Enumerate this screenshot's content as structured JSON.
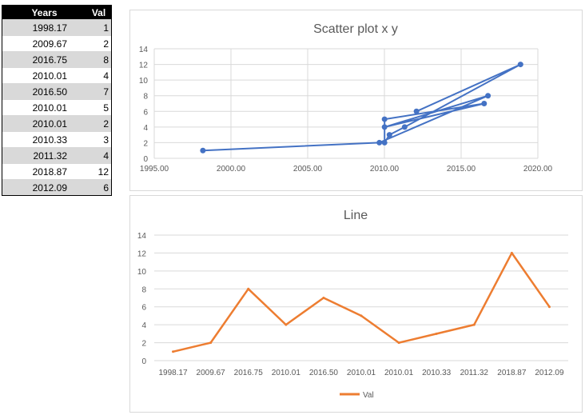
{
  "table": {
    "headers": [
      "Years",
      "Val"
    ],
    "rows": [
      [
        "1998.17",
        "1"
      ],
      [
        "2009.67",
        "2"
      ],
      [
        "2016.75",
        "8"
      ],
      [
        "2010.01",
        "4"
      ],
      [
        "2016.50",
        "7"
      ],
      [
        "2010.01",
        "5"
      ],
      [
        "2010.01",
        "2"
      ],
      [
        "2010.33",
        "3"
      ],
      [
        "2011.32",
        "4"
      ],
      [
        "2018.87",
        "12"
      ],
      [
        "2012.09",
        "6"
      ]
    ]
  },
  "chart_data": [
    {
      "type": "scatter",
      "title": "Scatter plot x y",
      "x": [
        1998.17,
        2009.67,
        2016.75,
        2010.01,
        2016.5,
        2010.01,
        2010.01,
        2010.33,
        2011.32,
        2018.87,
        2012.09
      ],
      "y": [
        1,
        2,
        8,
        4,
        7,
        5,
        2,
        3,
        4,
        12,
        6
      ],
      "connected": true,
      "xlim": [
        1995,
        2020
      ],
      "ylim": [
        0,
        14
      ],
      "xticks": [
        "1995.00",
        "2000.00",
        "2005.00",
        "2010.00",
        "2015.00",
        "2020.00"
      ],
      "yticks": [
        "0",
        "2",
        "4",
        "6",
        "8",
        "10",
        "12",
        "14"
      ],
      "color": "#4472c4",
      "grid": true
    },
    {
      "type": "line",
      "title": "Line",
      "categories": [
        "1998.17",
        "2009.67",
        "2016.75",
        "2010.01",
        "2016.50",
        "2010.01",
        "2010.01",
        "2010.33",
        "2011.32",
        "2018.87",
        "2012.09"
      ],
      "series": [
        {
          "name": "Val",
          "values": [
            1,
            2,
            8,
            4,
            7,
            5,
            2,
            3,
            4,
            12,
            6
          ],
          "color": "#ed7d31"
        }
      ],
      "ylim": [
        0,
        14
      ],
      "yticks": [
        "0",
        "2",
        "4",
        "6",
        "8",
        "10",
        "12",
        "14"
      ],
      "legend": "bottom",
      "grid": true
    }
  ]
}
